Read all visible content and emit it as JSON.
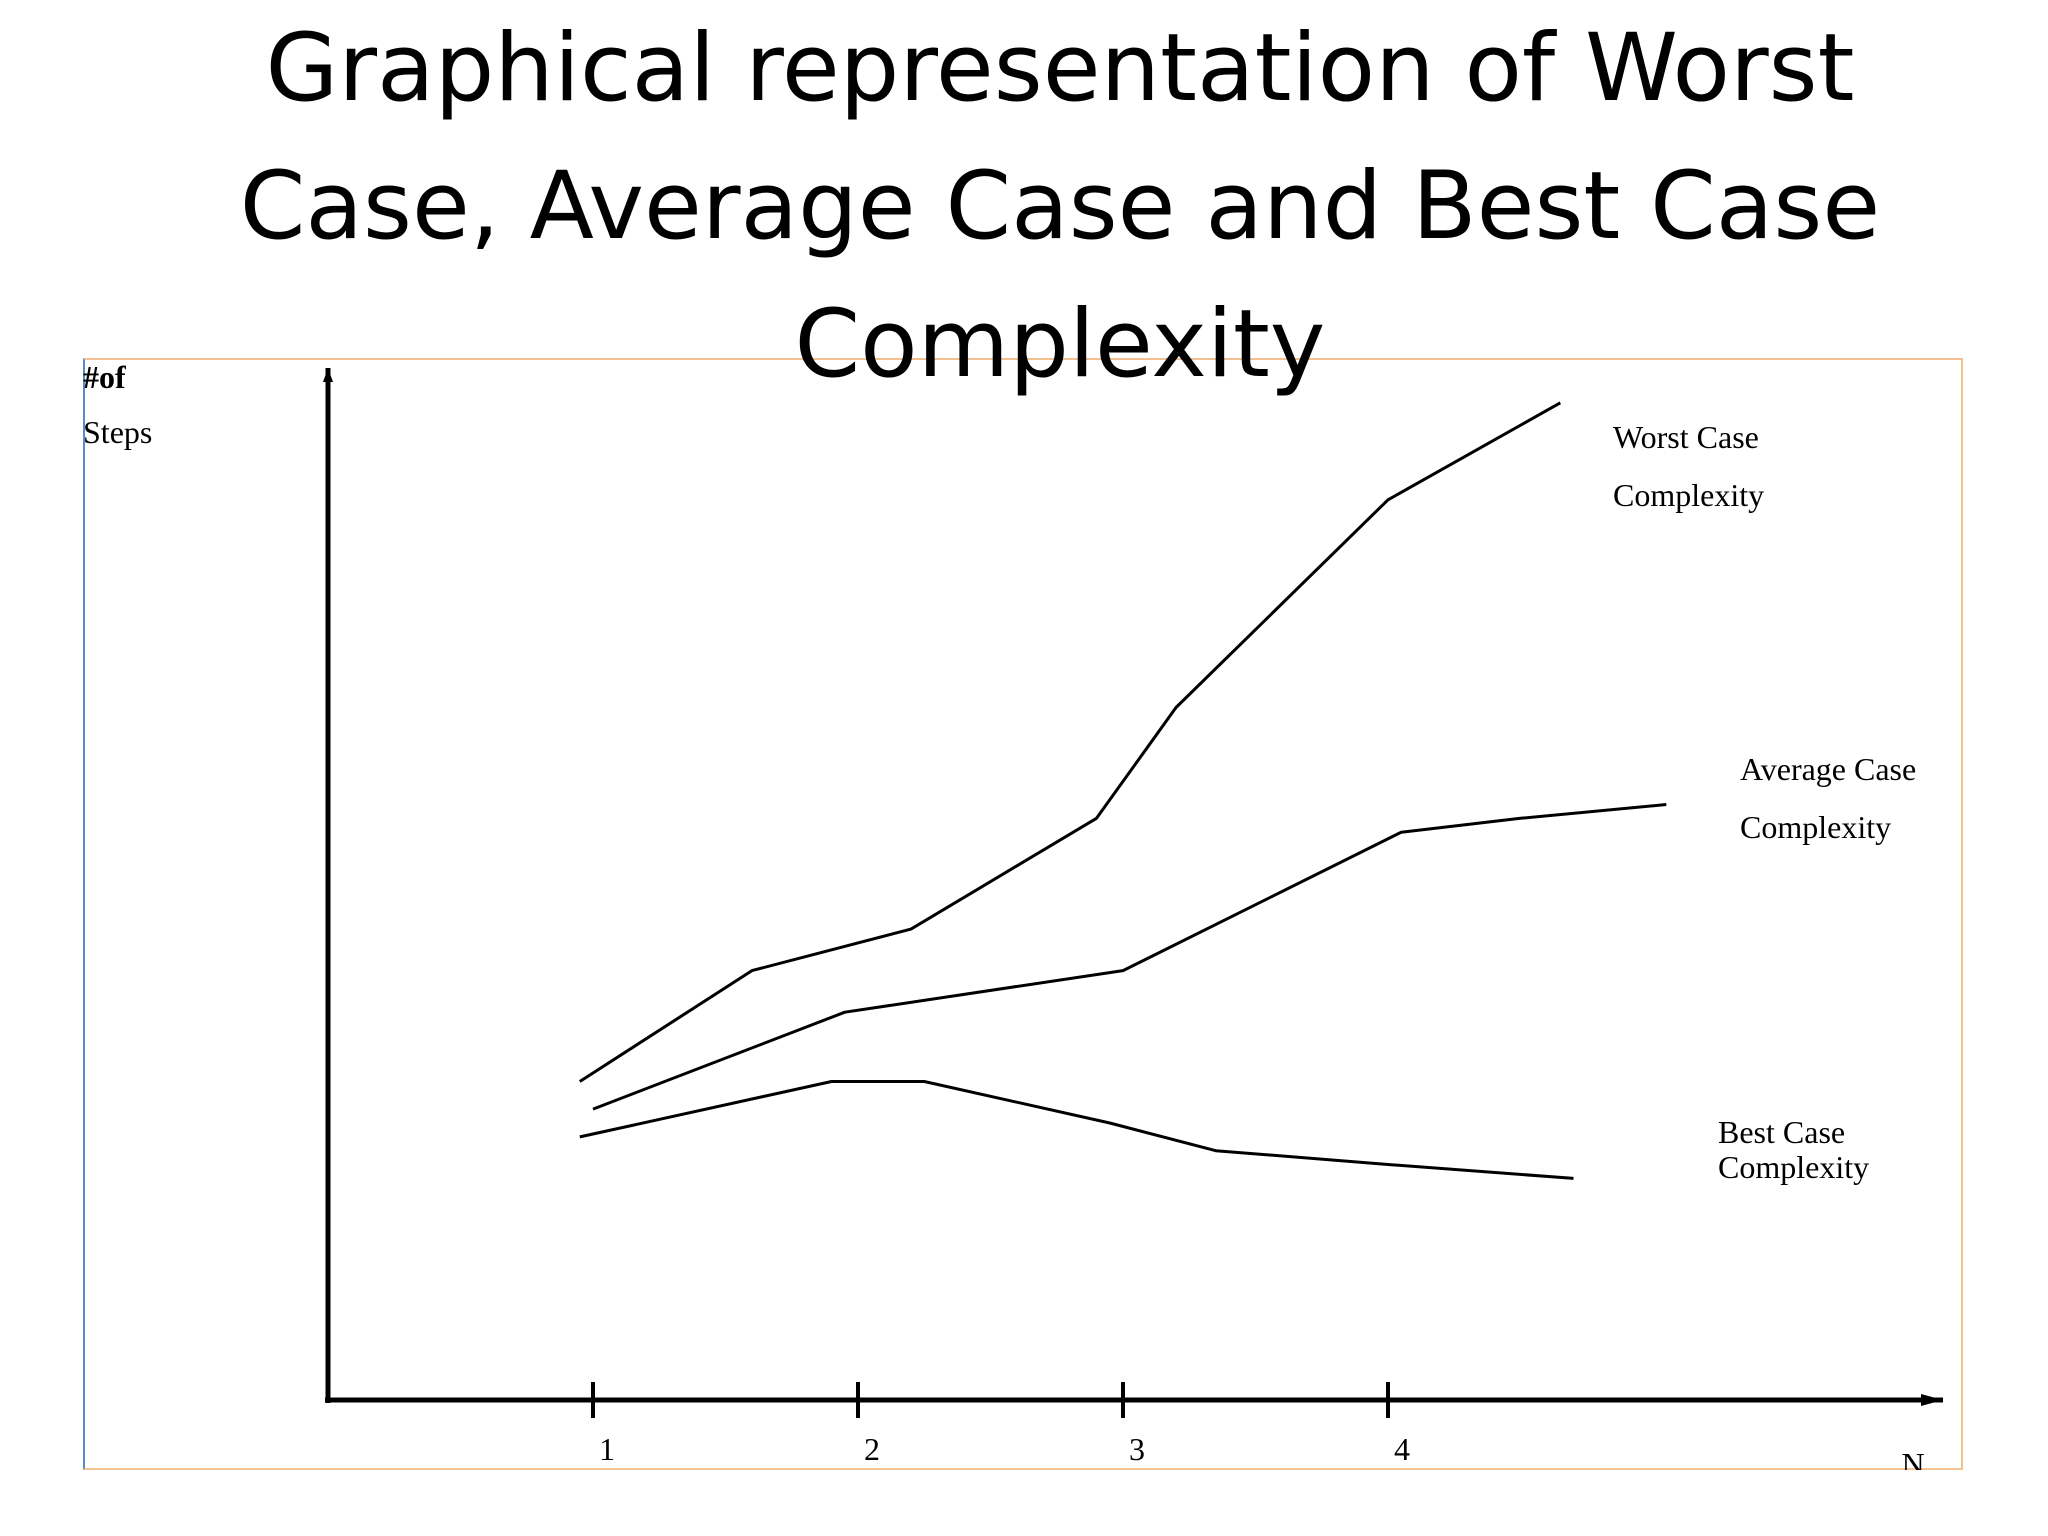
{
  "slide": {
    "title": "Graphical representation of Worst Case, Average Case and Best Case Complexity"
  },
  "chart_data": {
    "type": "line",
    "title": "",
    "ylabel_lines": [
      "#of",
      "Steps"
    ],
    "xlabel": "N",
    "x_ticks": [
      "1",
      "2",
      "3",
      "4"
    ],
    "grid": false,
    "legend": "inline-right",
    "series": [
      {
        "name_lines": [
          "Worst Case",
          "Complexity"
        ],
        "points": [
          [
            0.95,
            1.15
          ],
          [
            1.6,
            1.55
          ],
          [
            2.2,
            1.7
          ],
          [
            2.9,
            2.1
          ],
          [
            3.2,
            2.5
          ],
          [
            4.0,
            3.25
          ],
          [
            4.65,
            3.6
          ]
        ]
      },
      {
        "name_lines": [
          "Average Case",
          "Complexity"
        ],
        "points": [
          [
            1.0,
            1.05
          ],
          [
            1.95,
            1.4
          ],
          [
            3.0,
            1.55
          ],
          [
            4.05,
            2.05
          ],
          [
            4.5,
            2.1
          ],
          [
            5.05,
            2.15
          ]
        ]
      },
      {
        "name_lines": [
          "Best Case",
          "Complexity"
        ],
        "points": [
          [
            0.95,
            0.95
          ],
          [
            1.9,
            1.15
          ],
          [
            2.25,
            1.15
          ],
          [
            2.95,
            1.0
          ],
          [
            3.35,
            0.9
          ],
          [
            4.0,
            0.85
          ],
          [
            4.7,
            0.8
          ]
        ]
      }
    ]
  }
}
